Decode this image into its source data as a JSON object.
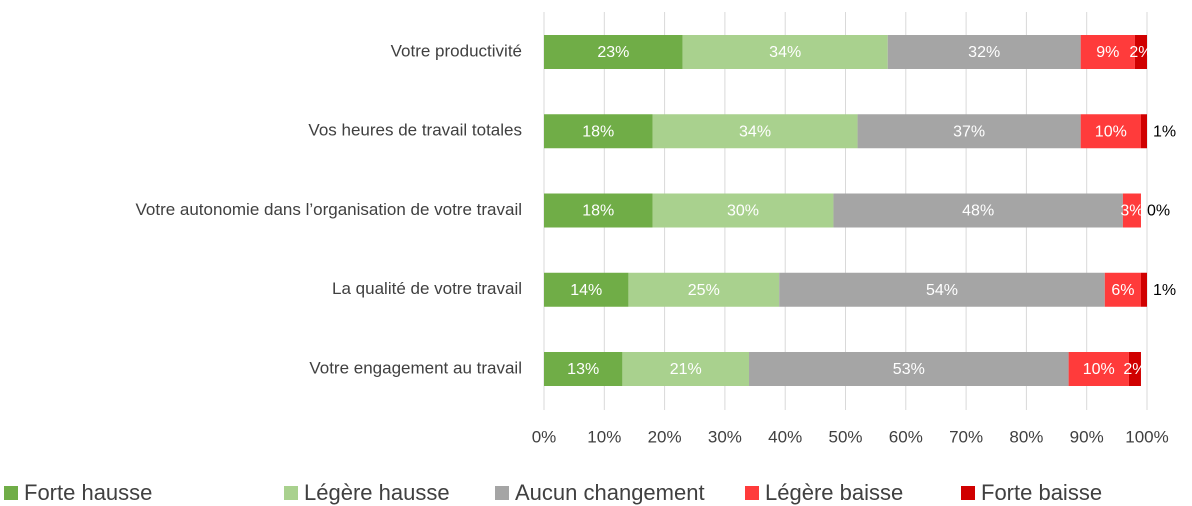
{
  "chart_data": {
    "type": "bar",
    "orientation": "horizontal",
    "stacked": true,
    "categories": [
      "Votre productivité",
      "Vos heures de travail totales",
      "Votre autonomie dans l’organisation de votre travail",
      "La qualité de votre travail",
      "Votre engagement au travail"
    ],
    "series": [
      {
        "name": "Forte hausse",
        "color": "#70ad47",
        "values": [
          23,
          18,
          18,
          14,
          13
        ],
        "value_labels": [
          "23%",
          "18%",
          "18%",
          "14%",
          "13%"
        ]
      },
      {
        "name": "Légère hausse",
        "color": "#a9d18e",
        "values": [
          34,
          34,
          30,
          25,
          21
        ],
        "value_labels": [
          "34%",
          "34%",
          "30%",
          "25%",
          "21%"
        ]
      },
      {
        "name": "Aucun changement",
        "color": "#a5a5a5",
        "values": [
          32,
          37,
          48,
          54,
          53
        ],
        "value_labels": [
          "32%",
          "37%",
          "48%",
          "54%",
          "53%"
        ]
      },
      {
        "name": "Légère baisse",
        "color": "#ff3b3b",
        "values": [
          9,
          10,
          3,
          6,
          10
        ],
        "value_labels": [
          "9%",
          "10%",
          "3%",
          "6%",
          "10%"
        ]
      },
      {
        "name": "Forte baisse",
        "color": "#d00000",
        "values": [
          2,
          1,
          0,
          1,
          2
        ],
        "value_labels": [
          "2%",
          "1%",
          "0%",
          "1%",
          "2%"
        ]
      }
    ],
    "xlim": [
      0,
      100
    ],
    "xticks": [
      {
        "value": 0,
        "label": "0%"
      },
      {
        "value": 10,
        "label": "10%"
      },
      {
        "value": 20,
        "label": "20%"
      },
      {
        "value": 30,
        "label": "30%"
      },
      {
        "value": 40,
        "label": "40%"
      },
      {
        "value": 50,
        "label": "50%"
      },
      {
        "value": 60,
        "label": "60%"
      },
      {
        "value": 70,
        "label": "70%"
      },
      {
        "value": 80,
        "label": "80%"
      },
      {
        "value": 90,
        "label": "90%"
      },
      {
        "value": 100,
        "label": "100%"
      }
    ],
    "grid": true,
    "legend": "bottom"
  }
}
